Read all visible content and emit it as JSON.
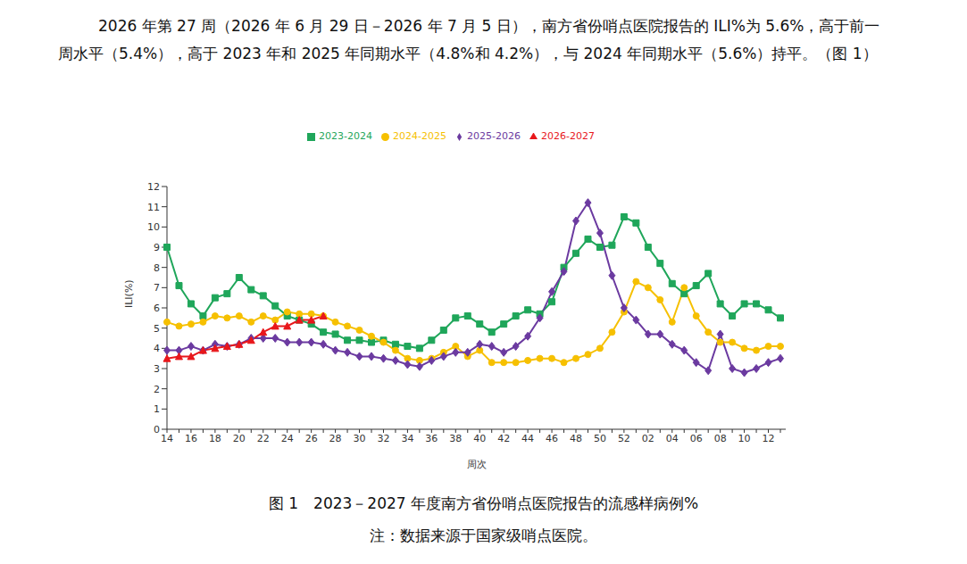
{
  "document": {
    "paragraph": "2026 年第 27 周（2026 年 6 月 29 日－2026 年 7 月 5 日），南方省份哨点医院报告的 ILI%为 5.6%，高于前一周水平（5.4%），高于 2023 年和 2025 年同期水平（4.8%和 4.2%），与 2024 年同期水平（5.6%）持平。（图 1）",
    "caption": "图 1　2023－2027 年度南方省份哨点医院报告的流感样病例%",
    "note": "注：数据来源于国家级哨点医院。"
  },
  "chart_data": {
    "type": "line",
    "x_label": "周次",
    "y_label": "ILI(%)",
    "categories": [
      "14",
      null,
      "16",
      null,
      "18",
      null,
      "20",
      null,
      "22",
      null,
      "24",
      null,
      "26",
      null,
      "28",
      null,
      "30",
      null,
      "32",
      null,
      "34",
      null,
      "36",
      null,
      "38",
      null,
      "40",
      null,
      "42",
      null,
      "44",
      null,
      "46",
      null,
      "48",
      null,
      "50",
      null,
      "52",
      null,
      "02",
      null,
      "04",
      null,
      "06",
      null,
      "08",
      null,
      "10",
      null,
      "12",
      null
    ],
    "ylim": [
      0,
      12
    ],
    "yticks": [
      0,
      1,
      2,
      3,
      4,
      5,
      6,
      7,
      8,
      9,
      10,
      11,
      12
    ],
    "grid": false,
    "legend": "top",
    "series": [
      {
        "name": "2023-2024",
        "color": "#1fa65a",
        "marker": "square",
        "values": [
          9.0,
          7.1,
          6.2,
          5.6,
          6.5,
          6.7,
          7.5,
          6.9,
          6.6,
          6.1,
          5.6,
          5.4,
          5.2,
          4.8,
          4.7,
          4.4,
          4.4,
          4.3,
          4.4,
          4.2,
          4.1,
          4.0,
          4.4,
          4.9,
          5.5,
          5.6,
          5.2,
          4.8,
          5.2,
          5.6,
          5.9,
          5.7,
          6.3,
          8.0,
          8.7,
          9.4,
          9.0,
          9.1,
          10.5,
          10.2,
          9.0,
          8.2,
          7.2,
          6.7,
          7.1,
          7.7,
          6.2,
          5.6,
          6.2,
          6.2,
          5.9,
          5.5
        ]
      },
      {
        "name": "2024-2025",
        "color": "#f6c000",
        "marker": "circle",
        "values": [
          5.3,
          5.1,
          5.2,
          5.3,
          5.6,
          5.5,
          5.6,
          5.3,
          5.6,
          5.4,
          5.8,
          5.7,
          5.7,
          5.6,
          5.3,
          5.1,
          4.9,
          4.6,
          4.3,
          3.9,
          3.5,
          3.4,
          3.5,
          3.8,
          4.1,
          3.6,
          3.9,
          3.3,
          3.3,
          3.3,
          3.4,
          3.5,
          3.5,
          3.3,
          3.5,
          3.7,
          4.0,
          4.8,
          5.8,
          7.3,
          7.0,
          6.4,
          5.3,
          7.0,
          5.6,
          4.8,
          4.3,
          4.3,
          4.0,
          3.9,
          4.1,
          4.1
        ]
      },
      {
        "name": "2025-2026",
        "color": "#6b3aa0",
        "marker": "diamond",
        "values": [
          3.9,
          3.9,
          4.1,
          3.9,
          4.2,
          4.1,
          4.2,
          4.5,
          4.5,
          4.5,
          4.3,
          4.3,
          4.3,
          4.2,
          3.9,
          3.8,
          3.6,
          3.6,
          3.5,
          3.4,
          3.2,
          3.1,
          3.4,
          3.6,
          3.8,
          3.8,
          4.2,
          4.1,
          3.8,
          4.1,
          4.6,
          5.5,
          6.8,
          7.8,
          10.3,
          11.2,
          9.7,
          7.6,
          6.0,
          5.4,
          4.7,
          4.7,
          4.2,
          3.9,
          3.3,
          2.9,
          4.7,
          3.0,
          2.8,
          3.0,
          3.3,
          3.5
        ]
      },
      {
        "name": "2026-2027",
        "color": "#e8171b",
        "marker": "triangle",
        "values": [
          3.5,
          3.6,
          3.6,
          3.9,
          4.0,
          4.1,
          4.2,
          4.4,
          4.8,
          5.1,
          5.1,
          5.4,
          5.4,
          5.6,
          null,
          null,
          null,
          null,
          null,
          null,
          null,
          null,
          null,
          null,
          null,
          null,
          null,
          null,
          null,
          null,
          null,
          null,
          null,
          null,
          null,
          null,
          null,
          null,
          null,
          null,
          null,
          null,
          null,
          null,
          null,
          null,
          null,
          null,
          null,
          null,
          null,
          null
        ]
      }
    ]
  }
}
